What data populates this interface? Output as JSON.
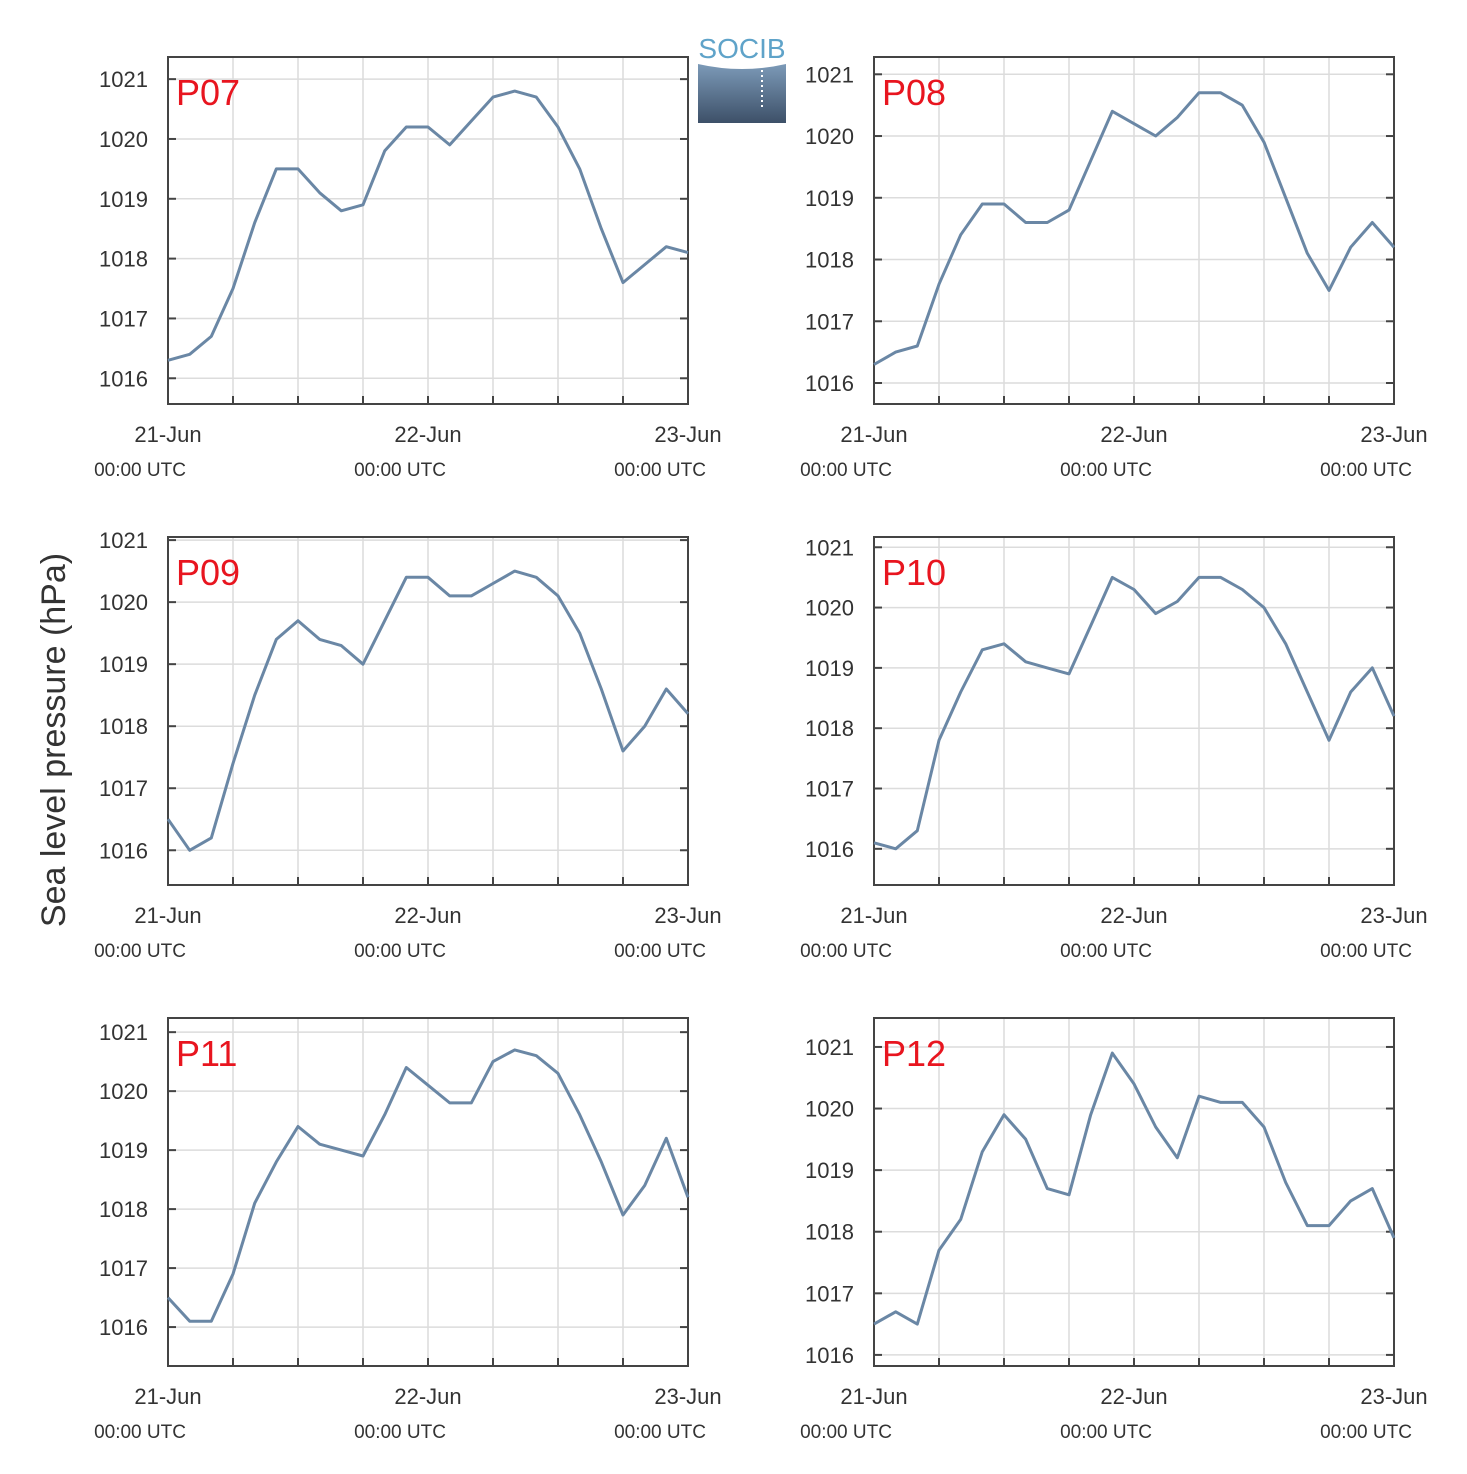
{
  "logo": "SOCIB",
  "ylabel": "Sea level pressure (hPa)",
  "chart_data": [
    {
      "type": "line",
      "title": "P07",
      "title_color": "#e8151f",
      "color": "#6a87a5",
      "grid": true,
      "x": [
        0,
        2,
        4,
        6,
        8,
        10,
        12,
        14,
        16,
        18,
        20,
        22,
        24,
        26,
        28,
        30,
        32,
        34,
        36,
        38,
        40,
        42,
        44,
        46,
        48
      ],
      "values": [
        1016.3,
        1016.4,
        1016.7,
        1017.5,
        1018.6,
        1019.5,
        1019.5,
        1019.1,
        1018.8,
        1018.9,
        1019.8,
        1020.2,
        1020.2,
        1019.9,
        1020.3,
        1020.7,
        1020.8,
        1020.7,
        1020.2,
        1019.5,
        1018.5,
        1017.6,
        1017.9,
        1018.2,
        1018.1
      ],
      "xlim": [
        0,
        48
      ],
      "xticks": [
        {
          "value": 0,
          "label": "21-Jun\n00:00 UTC"
        },
        {
          "value": 24,
          "label": "22-Jun\n00:00 UTC"
        },
        {
          "value": 48,
          "label": "23-Jun\n00:00 UTC"
        }
      ],
      "xminorticks": [
        6,
        12,
        18,
        30,
        36,
        42
      ],
      "ylim": [
        1015.57,
        1021.37
      ],
      "yticks": [
        1016,
        1017,
        1018,
        1019,
        1020,
        1021
      ]
    },
    {
      "type": "line",
      "title": "P08",
      "title_color": "#e8151f",
      "color": "#6a87a5",
      "grid": true,
      "x": [
        0,
        2,
        4,
        6,
        8,
        10,
        12,
        14,
        16,
        18,
        20,
        22,
        24,
        26,
        28,
        30,
        32,
        34,
        36,
        38,
        40,
        42,
        44,
        46,
        48
      ],
      "values": [
        1016.3,
        1016.5,
        1016.6,
        1017.6,
        1018.4,
        1018.9,
        1018.9,
        1018.6,
        1018.6,
        1018.8,
        1019.6,
        1020.4,
        1020.2,
        1020.0,
        1020.3,
        1020.7,
        1020.7,
        1020.5,
        1019.9,
        1019.0,
        1018.1,
        1017.5,
        1018.2,
        1018.6,
        1018.2
      ],
      "xlim": [
        0,
        48
      ],
      "xticks": [
        {
          "value": 0,
          "label": "21-Jun\n00:00 UTC"
        },
        {
          "value": 24,
          "label": "22-Jun\n00:00 UTC"
        },
        {
          "value": 48,
          "label": "23-Jun\n00:00 UTC"
        }
      ],
      "xminorticks": [
        6,
        12,
        18,
        30,
        36,
        42
      ],
      "ylim": [
        1015.66,
        1021.28
      ],
      "yticks": [
        1016,
        1017,
        1018,
        1019,
        1020,
        1021
      ]
    },
    {
      "type": "line",
      "title": "P09",
      "title_color": "#e8151f",
      "color": "#6a87a5",
      "grid": true,
      "x": [
        0,
        2,
        4,
        6,
        8,
        10,
        12,
        14,
        16,
        18,
        20,
        22,
        24,
        26,
        28,
        30,
        32,
        34,
        36,
        38,
        40,
        42,
        44,
        46,
        48
      ],
      "values": [
        1016.5,
        1016.0,
        1016.2,
        1017.4,
        1018.5,
        1019.4,
        1019.7,
        1019.4,
        1019.3,
        1019.0,
        1019.7,
        1020.4,
        1020.4,
        1020.1,
        1020.1,
        1020.3,
        1020.5,
        1020.4,
        1020.1,
        1019.5,
        1018.6,
        1017.6,
        1018.0,
        1018.6,
        1018.2
      ],
      "xlim": [
        0,
        48
      ],
      "xticks": [
        {
          "value": 0,
          "label": "21-Jun\n00:00 UTC"
        },
        {
          "value": 24,
          "label": "22-Jun\n00:00 UTC"
        },
        {
          "value": 48,
          "label": "23-Jun\n00:00 UTC"
        }
      ],
      "xminorticks": [
        6,
        12,
        18,
        30,
        36,
        42
      ],
      "ylim": [
        1015.44,
        1021.05
      ],
      "yticks": [
        1016,
        1017,
        1018,
        1019,
        1020,
        1021
      ]
    },
    {
      "type": "line",
      "title": "P10",
      "title_color": "#e8151f",
      "color": "#6a87a5",
      "grid": true,
      "x": [
        0,
        2,
        4,
        6,
        8,
        10,
        12,
        14,
        16,
        18,
        20,
        22,
        24,
        26,
        28,
        30,
        32,
        34,
        36,
        38,
        40,
        42,
        44,
        46,
        48
      ],
      "values": [
        1016.1,
        1016.0,
        1016.3,
        1017.8,
        1018.6,
        1019.3,
        1019.4,
        1019.1,
        1019.0,
        1018.9,
        1019.7,
        1020.5,
        1020.3,
        1019.9,
        1020.1,
        1020.5,
        1020.5,
        1020.3,
        1020.0,
        1019.4,
        1018.6,
        1017.8,
        1018.6,
        1019.0,
        1018.2
      ],
      "xlim": [
        0,
        48
      ],
      "xticks": [
        {
          "value": 0,
          "label": "21-Jun\n00:00 UTC"
        },
        {
          "value": 24,
          "label": "22-Jun\n00:00 UTC"
        },
        {
          "value": 48,
          "label": "23-Jun\n00:00 UTC"
        }
      ],
      "xminorticks": [
        6,
        12,
        18,
        30,
        36,
        42
      ],
      "ylim": [
        1015.4,
        1021.17
      ],
      "yticks": [
        1016,
        1017,
        1018,
        1019,
        1020,
        1021
      ]
    },
    {
      "type": "line",
      "title": "P11",
      "title_color": "#e8151f",
      "color": "#6a87a5",
      "grid": true,
      "x": [
        0,
        2,
        4,
        6,
        8,
        10,
        12,
        14,
        16,
        18,
        20,
        22,
        24,
        26,
        28,
        30,
        32,
        34,
        36,
        38,
        40,
        42,
        44,
        46,
        48
      ],
      "values": [
        1016.5,
        1016.1,
        1016.1,
        1016.9,
        1018.1,
        1018.8,
        1019.4,
        1019.1,
        1019.0,
        1018.9,
        1019.6,
        1020.4,
        1020.1,
        1019.8,
        1019.8,
        1020.5,
        1020.7,
        1020.6,
        1020.3,
        1019.6,
        1018.8,
        1017.9,
        1018.4,
        1019.2,
        1018.2
      ],
      "xlim": [
        0,
        48
      ],
      "xticks": [
        {
          "value": 0,
          "label": "21-Jun\n00:00 UTC"
        },
        {
          "value": 24,
          "label": "22-Jun\n00:00 UTC"
        },
        {
          "value": 48,
          "label": "23-Jun\n00:00 UTC"
        }
      ],
      "xminorticks": [
        6,
        12,
        18,
        30,
        36,
        42
      ],
      "ylim": [
        1015.34,
        1021.24
      ],
      "yticks": [
        1016,
        1017,
        1018,
        1019,
        1020,
        1021
      ]
    },
    {
      "type": "line",
      "title": "P12",
      "title_color": "#e8151f",
      "color": "#6a87a5",
      "grid": true,
      "x": [
        0,
        2,
        4,
        6,
        8,
        10,
        12,
        14,
        16,
        18,
        20,
        22,
        24,
        26,
        28,
        30,
        32,
        34,
        36,
        38,
        40,
        42,
        44,
        46,
        48
      ],
      "values": [
        1016.5,
        1016.7,
        1016.5,
        1017.7,
        1018.2,
        1019.3,
        1019.9,
        1019.5,
        1018.7,
        1018.6,
        1019.9,
        1020.9,
        1020.4,
        1019.7,
        1019.2,
        1020.2,
        1020.1,
        1020.1,
        1019.7,
        1018.8,
        1018.1,
        1018.1,
        1018.5,
        1018.7,
        1017.9
      ],
      "xlim": [
        0,
        48
      ],
      "xticks": [
        {
          "value": 0,
          "label": "21-Jun\n00:00 UTC"
        },
        {
          "value": 24,
          "label": "22-Jun\n00:00 UTC"
        },
        {
          "value": 48,
          "label": "23-Jun\n00:00 UTC"
        }
      ],
      "xminorticks": [
        6,
        12,
        18,
        30,
        36,
        42
      ],
      "ylim": [
        1015.82,
        1021.47
      ],
      "yticks": [
        1016,
        1017,
        1018,
        1019,
        1020,
        1021
      ]
    }
  ]
}
